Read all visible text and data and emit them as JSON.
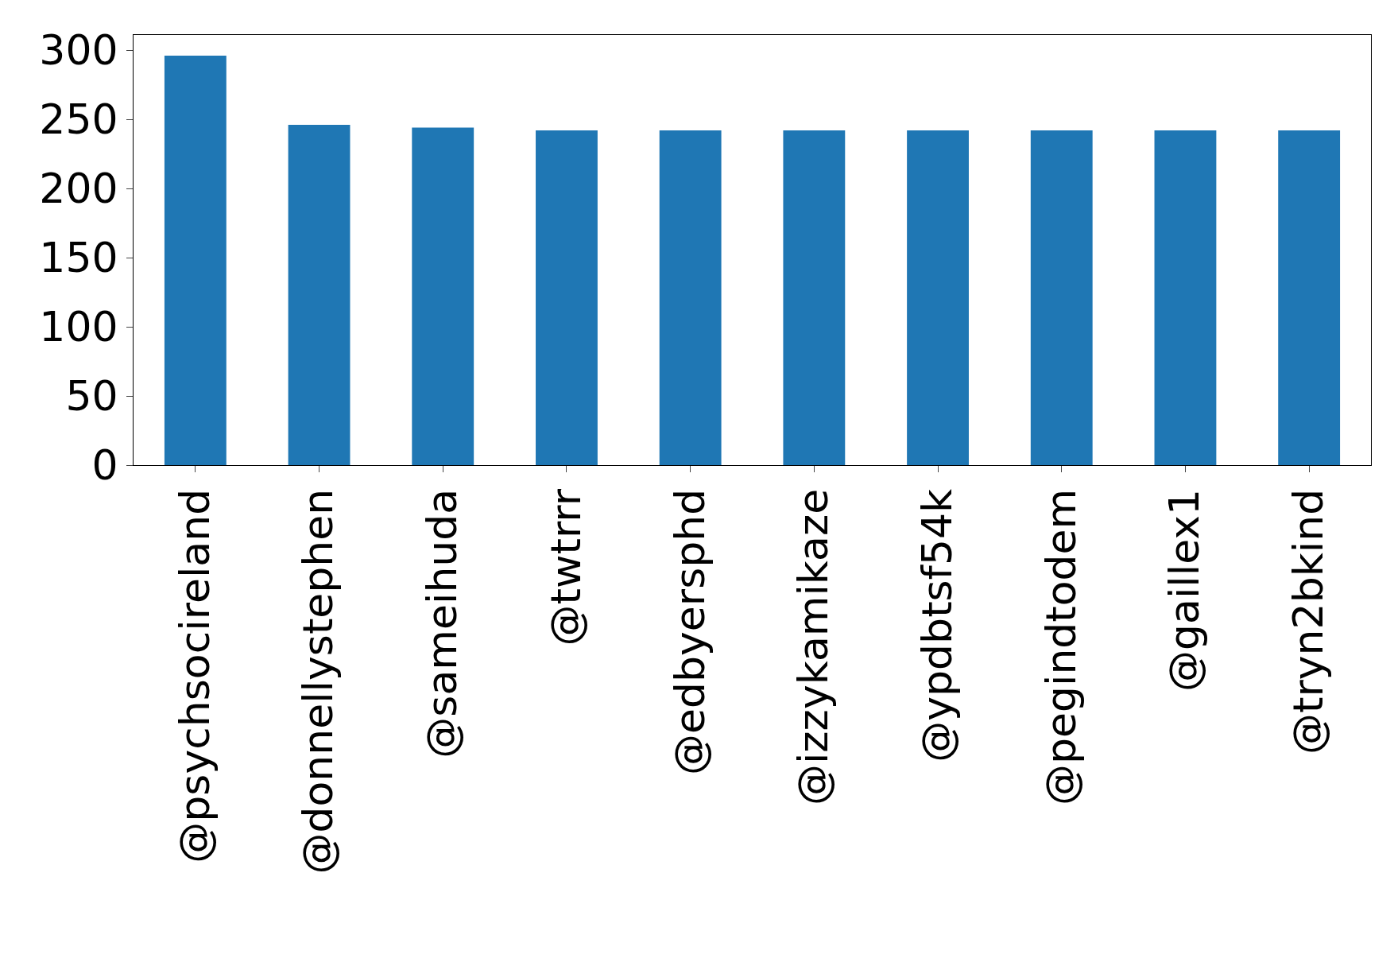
{
  "chart_data": {
    "type": "bar",
    "categories": [
      "@psychsocireland",
      "@donnellystephen",
      "@sameihuda",
      "@twtrrr",
      "@edbyersphd",
      "@izzykamikaze",
      "@ypdbtsf54k",
      "@pegindtodem",
      "@gaillex1",
      "@tryn2bkind"
    ],
    "values": [
      296,
      246,
      244,
      242,
      242,
      242,
      242,
      242,
      242,
      242
    ],
    "color": "#1f77b4",
    "ylim": [
      0,
      311
    ],
    "yticks": [
      0,
      50,
      100,
      150,
      200,
      250,
      300
    ],
    "grid": false,
    "legend": false
  }
}
